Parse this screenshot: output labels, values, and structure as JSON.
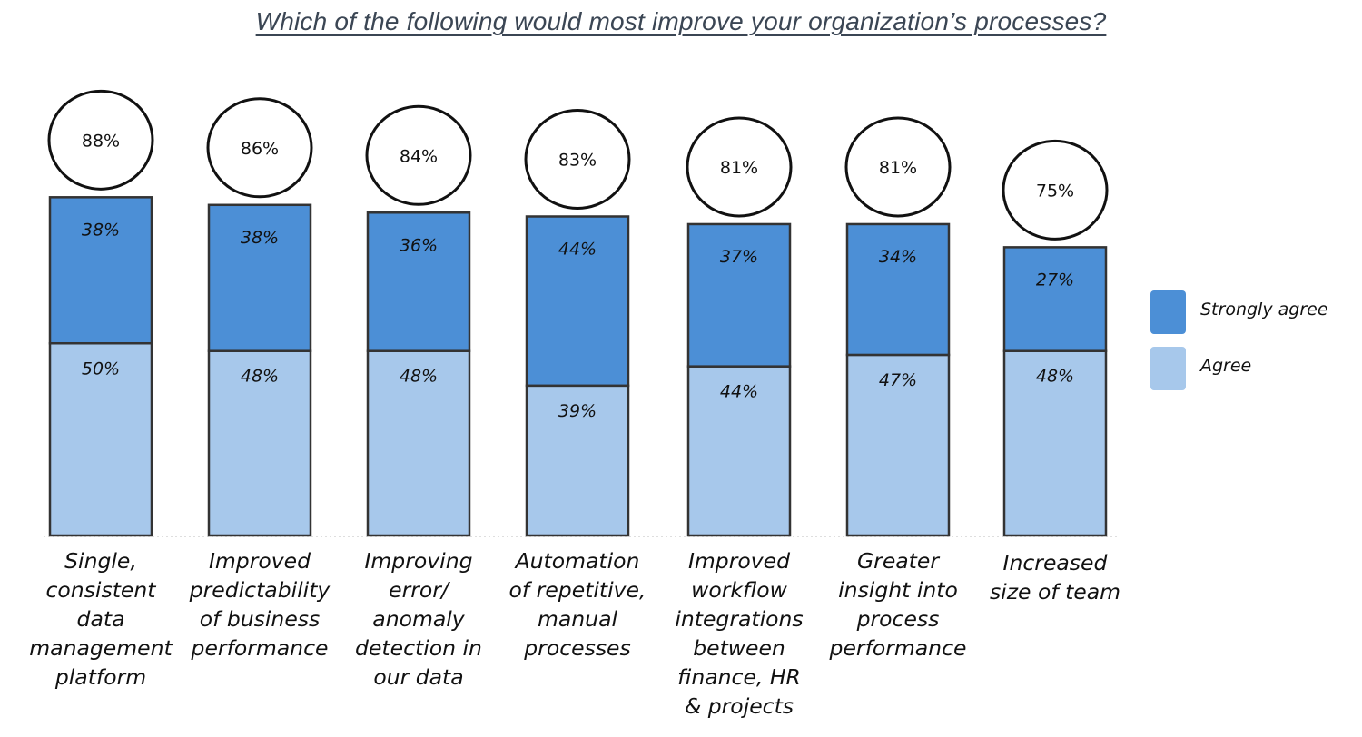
{
  "chart_data": {
    "type": "bar",
    "stacked": true,
    "title": "Which of the following would most improve your organization’s processes?",
    "categories": [
      "Single,\nconsistent\ndata\nmanagement\nplatform",
      "Improved\npredictability\nof business\nperformance",
      "Improving\nerror/\nanomaly\ndetection in\nour data",
      "Automation\nof repetitive,\nmanual\nprocesses",
      "Improved\nworkflow\nintegrations\nbetween\nfinance, HR\n& projects",
      "Greater\ninsight into\nprocess\nperformance",
      "Increased\nsize of team"
    ],
    "series": [
      {
        "name": "Agree",
        "values": [
          50,
          48,
          48,
          39,
          44,
          47,
          48
        ],
        "color": "#a7c8eb"
      },
      {
        "name": "Strongly agree",
        "values": [
          38,
          38,
          36,
          44,
          37,
          34,
          27
        ],
        "color": "#4c8fd6"
      }
    ],
    "series_labels": [
      [
        "50%",
        "48%",
        "48%",
        "39%",
        "44%",
        "47%",
        "48%"
      ],
      [
        "38%",
        "38%",
        "36%",
        "44%",
        "37%",
        "34%",
        "27%"
      ]
    ],
    "totals": [
      88,
      86,
      84,
      83,
      81,
      81,
      75
    ],
    "total_labels": [
      "88%",
      "86%",
      "84%",
      "83%",
      "81%",
      "81%",
      "75%"
    ],
    "ylim": [
      0,
      100
    ],
    "xlabel": "",
    "ylabel": "",
    "grid": false,
    "legend": {
      "placement": "right",
      "entries": [
        {
          "label": "Strongly agree",
          "color": "#4c8fd6"
        },
        {
          "label": "Agree",
          "color": "#a7c8eb"
        }
      ]
    }
  }
}
